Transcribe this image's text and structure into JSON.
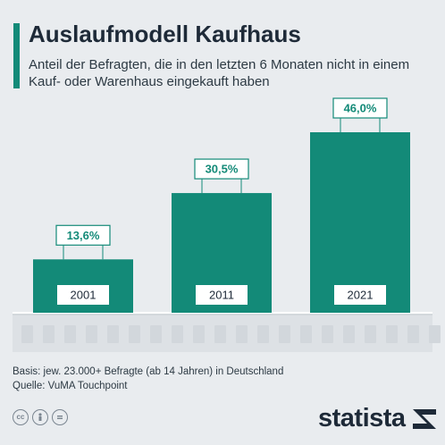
{
  "header": {
    "title": "Auslaufmodell Kaufhaus",
    "subtitle": "Anteil der Befragten, die in den letzten 6 Monaten nicht in einem Kauf- oder Warenhaus eingekauft haben"
  },
  "colors": {
    "bar": "#138a78",
    "label_border": "#138a78",
    "label_text": "#138a78",
    "title": "#1e2a38",
    "background": "#e9ecef"
  },
  "chart_data": {
    "type": "bar",
    "categories": [
      "2001",
      "2011",
      "2021"
    ],
    "values": [
      13.6,
      30.5,
      46.0
    ],
    "value_labels": [
      "13,6%",
      "30,5%",
      "46,0%"
    ],
    "title": "Auslaufmodell Kaufhaus",
    "xlabel": "",
    "ylabel": "",
    "ylim": [
      0,
      50
    ],
    "grid": false,
    "legend": "none"
  },
  "footer": {
    "basis": "Basis: jew. 23.000+ Befragte (ab 14 Jahren) in Deutschland",
    "source": "Quelle: VuMA Touchpoint"
  },
  "license_icons": [
    "cc-icon",
    "person-icon",
    "equals-icon"
  ],
  "brand": {
    "name": "statista"
  }
}
